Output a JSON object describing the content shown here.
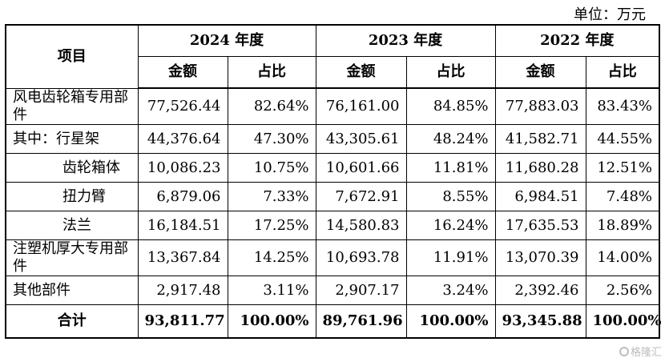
{
  "unit_label": "单位：万元",
  "header": {
    "item": "项目",
    "years": [
      "2024 年度",
      "2023 年度",
      "2022 年度"
    ],
    "amount": "金额",
    "ratio": "占比"
  },
  "rows": [
    {
      "label": "风电齿轮箱专用部件",
      "values": [
        "77,526.44",
        "82.64%",
        "76,161.00",
        "84.85%",
        "77,883.03",
        "83.43%"
      ]
    },
    {
      "label": "其中：行星架",
      "values": [
        "44,376.64",
        "47.30%",
        "43,305.61",
        "48.24%",
        "41,582.71",
        "44.55%"
      ]
    },
    {
      "label": "齿轮箱体",
      "values": [
        "10,086.23",
        "10.75%",
        "10,601.66",
        "11.81%",
        "11,680.28",
        "12.51%"
      ]
    },
    {
      "label": "扭力臂",
      "values": [
        "6,879.06",
        "7.33%",
        "7,672.91",
        "8.55%",
        "6,984.51",
        "7.48%"
      ]
    },
    {
      "label": "法兰",
      "values": [
        "16,184.51",
        "17.25%",
        "14,580.83",
        "16.24%",
        "17,635.53",
        "18.89%"
      ]
    },
    {
      "label": "注塑机厚大专用部件",
      "values": [
        "13,367.84",
        "14.25%",
        "10,693.78",
        "11.91%",
        "13,070.39",
        "14.00%"
      ]
    },
    {
      "label": "其他部件",
      "values": [
        "2,917.48",
        "3.11%",
        "2,907.17",
        "3.24%",
        "2,392.46",
        "2.56%"
      ]
    },
    {
      "label": "合计",
      "values": [
        "93,811.77",
        "100.00%",
        "89,761.96",
        "100.00%",
        "93,345.88",
        "100.00%"
      ]
    }
  ],
  "watermark": "格隆汇"
}
